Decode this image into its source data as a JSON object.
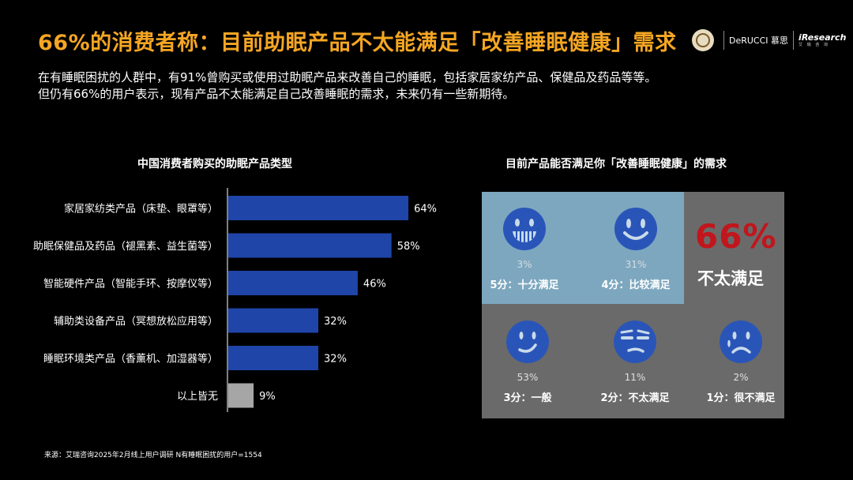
{
  "title": "66%的消费者称：目前助眠产品不太能满足「改善睡眠健康」需求",
  "logos": {
    "brand": "DeRUCCI 慕思",
    "research": "iResearch",
    "research_cn": "艾 瑞 咨 询"
  },
  "subtitle": {
    "line1": "在有睡眠困扰的人群中，有91%曾购买或使用过助眠产品来改善自己的睡眠，包括家居家纺产品、保健品及药品等等。",
    "line2": "但仍有66%的用户表示，现有产品不太能满足自己改善睡眠的需求，未来仍有一些新期待。"
  },
  "chart_data": {
    "type": "bar",
    "orientation": "horizontal",
    "title": "中国消费者购买的助眠产品类型",
    "categories": [
      "家居家纺类产品（床垫、眼罩等）",
      "助眠保健品及药品（褪黑素、益生菌等）",
      "智能硬件产品（智能手环、按摩仪等）",
      "辅助类设备产品（冥想放松应用等）",
      "睡眠环境类产品（香薰机、加湿器等）",
      "以上皆无"
    ],
    "values": [
      64,
      58,
      46,
      32,
      32,
      9
    ],
    "value_labels": [
      "64%",
      "58%",
      "46%",
      "32%",
      "32%",
      "9%"
    ],
    "colors": [
      "#1f45a8",
      "#1f45a8",
      "#1f45a8",
      "#1f45a8",
      "#1f45a8",
      "#a6a6a6"
    ],
    "xlim": [
      0,
      100
    ]
  },
  "satisfaction": {
    "title": "目前产品能否满足你「改善睡眠健康」的需求",
    "summary_value": "66%",
    "summary_label": "不太满足",
    "top_color": "#7da7bf",
    "bottom_color": "#6a6a6a",
    "accent_color": "#c0161c",
    "items": [
      {
        "pct": "3%",
        "label": "5分：十分满足",
        "face": "grin-icon"
      },
      {
        "pct": "31%",
        "label": "4分：比较满足",
        "face": "smile-icon"
      },
      {
        "pct": "53%",
        "label": "3分：一般",
        "face": "neutral-smile-icon"
      },
      {
        "pct": "11%",
        "label": "2分：不太满足",
        "face": "skeptical-icon"
      },
      {
        "pct": "2%",
        "label": "1分：很不满足",
        "face": "sad-icon"
      }
    ]
  },
  "source": "来源：艾瑞咨询2025年2月线上用户调研 N有睡眠困扰的用户=1554"
}
